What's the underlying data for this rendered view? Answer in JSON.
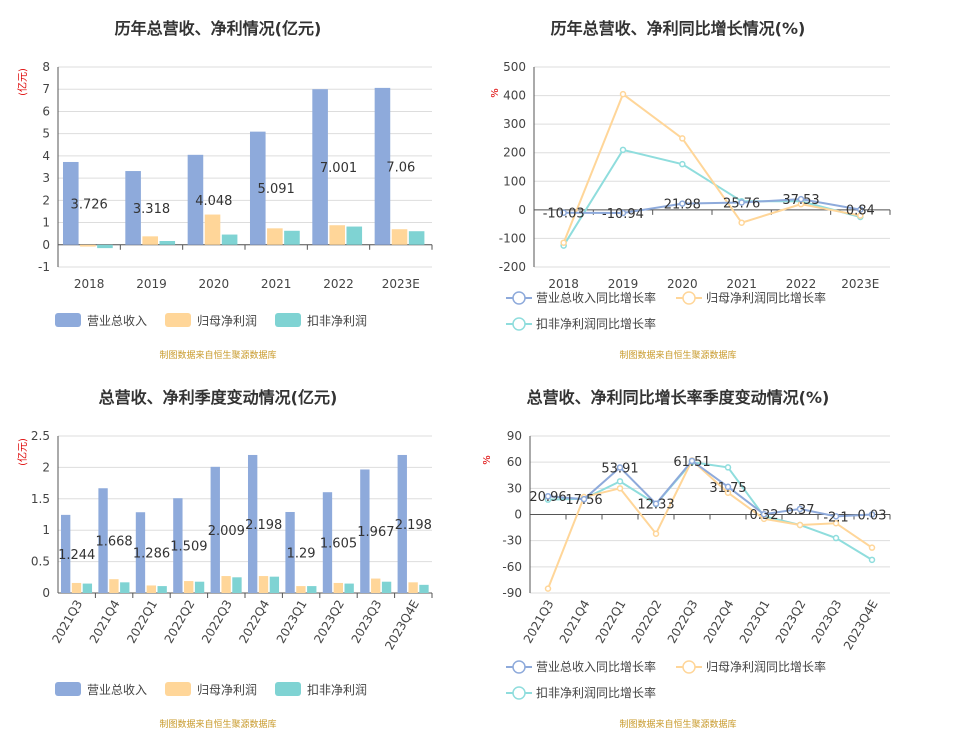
{
  "colors": {
    "revenue": "#8eaadb",
    "net_profit": "#ffd699",
    "deducted_profit": "#7fd3d3",
    "revenue_line": "#8eaadb",
    "net_line": "#ffd699",
    "deducted_line": "#8fdddd",
    "source_text": "#c89a2a",
    "unit_text": "#dd0000"
  },
  "charts": [
    {
      "id": "c1",
      "title": "历年总营收、净利情况(亿元)",
      "unit": "(亿元)",
      "source": "制图数据来自恒生聚源数据库",
      "legend": [
        "营业总收入",
        "归母净利润",
        "扣非净利润"
      ],
      "chart_data": {
        "type": "bar",
        "categories": [
          "2018",
          "2019",
          "2020",
          "2021",
          "2022",
          "2023E"
        ],
        "ylim": [
          -1,
          8
        ],
        "yticks": [
          -1,
          0,
          1,
          2,
          3,
          4,
          5,
          6,
          7,
          8
        ],
        "series": [
          {
            "name": "营业总收入",
            "values": [
              3.726,
              3.318,
              4.048,
              5.091,
              7.001,
              7.06
            ],
            "labels": [
              "3.726",
              "3.318",
              "4.048",
              "5.091",
              "7.001",
              "7.06"
            ]
          },
          {
            "name": "归母净利润",
            "values": [
              -0.08,
              0.38,
              1.36,
              0.74,
              0.88,
              0.7
            ]
          },
          {
            "name": "扣非净利润",
            "values": [
              -0.15,
              0.17,
              0.46,
              0.63,
              0.82,
              0.61
            ]
          }
        ]
      }
    },
    {
      "id": "c2",
      "title": "历年总营收、净利同比增长情况(%)",
      "unit": "%",
      "source": "制图数据来自恒生聚源数据库",
      "legend": [
        "营业总收入同比增长率",
        "归母净利润同比增长率",
        "扣非净利润同比增长率"
      ],
      "chart_data": {
        "type": "line",
        "categories": [
          "2018",
          "2019",
          "2020",
          "2021",
          "2022",
          "2023E"
        ],
        "ylim": [
          -200,
          500
        ],
        "yticks": [
          -200,
          -100,
          0,
          100,
          200,
          300,
          400,
          500
        ],
        "series": [
          {
            "name": "营业总收入同比增长率",
            "values": [
              -10.03,
              -10.94,
              21.98,
              25.76,
              37.53,
              0.84
            ],
            "labels": [
              "-10.03",
              "-10.94",
              "21.98",
              "25.76",
              "37.53",
              "0.84"
            ]
          },
          {
            "name": "归母净利润同比增长率",
            "values": [
              -115,
              405,
              250,
              -45,
              20,
              -20
            ]
          },
          {
            "name": "扣非净利润同比增长率",
            "values": [
              -125,
              210,
              160,
              30,
              30,
              -25
            ]
          }
        ]
      }
    },
    {
      "id": "c3",
      "title": "总营收、净利季度变动情况(亿元)",
      "unit": "(亿元)",
      "source": "制图数据来自恒生聚源数据库",
      "legend": [
        "营业总收入",
        "归母净利润",
        "扣非净利润"
      ],
      "chart_data": {
        "type": "bar",
        "categories": [
          "2021Q3",
          "2021Q4",
          "2022Q1",
          "2022Q2",
          "2022Q3",
          "2022Q4",
          "2023Q1",
          "2023Q2",
          "2023Q3",
          "2023Q4E"
        ],
        "ylim": [
          0,
          2.5
        ],
        "yticks": [
          0,
          0.5,
          1,
          1.5,
          2,
          2.5
        ],
        "series": [
          {
            "name": "营业总收入",
            "values": [
              1.244,
              1.668,
              1.286,
              1.509,
              2.009,
              2.198,
              1.29,
              1.605,
              1.967,
              2.198
            ],
            "labels": [
              "1.244",
              "1.668",
              "1.286",
              "1.509",
              "2.009",
              "2.198",
              "1.29",
              "1.605",
              "1.967",
              "2.198"
            ]
          },
          {
            "name": "归母净利润",
            "values": [
              0.16,
              0.22,
              0.12,
              0.19,
              0.27,
              0.27,
              0.11,
              0.16,
              0.23,
              0.17
            ]
          },
          {
            "name": "扣非净利润",
            "values": [
              0.15,
              0.17,
              0.11,
              0.18,
              0.25,
              0.26,
              0.11,
              0.15,
              0.18,
              0.13
            ]
          }
        ]
      }
    },
    {
      "id": "c4",
      "title": "总营收、净利同比增长率季度变动情况(%)",
      "unit": "%",
      "source": "制图数据来自恒生聚源数据库",
      "legend": [
        "营业总收入同比增长率",
        "归母净利润同比增长率",
        "扣非净利润同比增长率"
      ],
      "chart_data": {
        "type": "line",
        "categories": [
          "2021Q3",
          "2021Q4",
          "2022Q1",
          "2022Q2",
          "2022Q3",
          "2022Q4",
          "2023Q1",
          "2023Q2",
          "2023Q3",
          "2023Q4E"
        ],
        "ylim": [
          -90,
          90
        ],
        "yticks": [
          -90,
          -60,
          -30,
          0,
          30,
          60,
          90
        ],
        "series": [
          {
            "name": "营业总收入同比增长率",
            "values": [
              20.96,
              17.56,
              53.91,
              12.33,
              61.51,
              31.75,
              0.32,
              6.37,
              -2.1,
              0.03
            ],
            "labels": [
              "20.96",
              "17.56",
              "53.91",
              "12.33",
              "61.51",
              "31.75",
              "0.32",
              "6.37",
              "-2.1",
              "0.03"
            ]
          },
          {
            "name": "归母净利润同比增长率",
            "values": [
              -85,
              20,
              30,
              -22,
              62,
              25,
              -5,
              -12,
              -10,
              -38
            ]
          },
          {
            "name": "扣非净利润同比增长率",
            "values": [
              17,
              18,
              38,
              12,
              60,
              54,
              -2,
              -12,
              -27,
              -52
            ]
          }
        ]
      }
    }
  ]
}
